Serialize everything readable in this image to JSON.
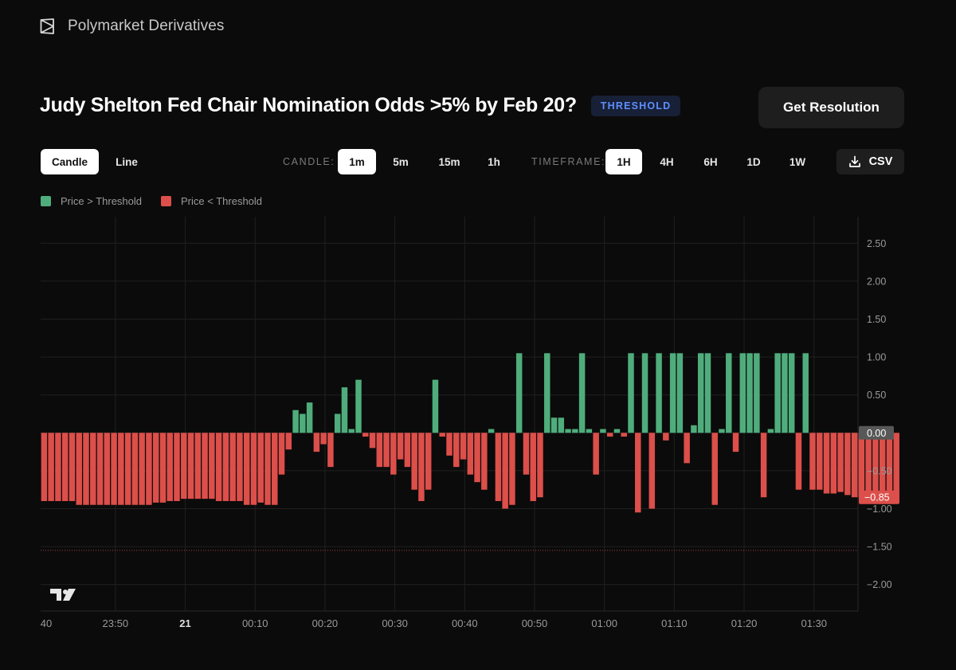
{
  "brand": {
    "name": "Polymarket Derivatives"
  },
  "page": {
    "title": "Judy Shelton Fed Chair Nomination Odds >5% by Feb 20?",
    "badge": "THRESHOLD",
    "resolution_button": "Get Resolution"
  },
  "controls": {
    "chart_types": [
      "Candle",
      "Line"
    ],
    "active_chart_type": "Candle",
    "candle_label": "CANDLE:",
    "candle_options": [
      "1m",
      "5m",
      "15m",
      "1h"
    ],
    "active_candle": "1m",
    "timeframe_label": "TIMEFRAME:",
    "timeframe_options": [
      "1H",
      "4H",
      "6H",
      "1D",
      "1W"
    ],
    "active_timeframe": "1H",
    "csv_label": "CSV"
  },
  "colors": {
    "above": "#4fad7c",
    "below": "#dc4f4a",
    "grid": "#202020",
    "zero_tag_bg": "#585858",
    "last_tag_bg": "#dc4f4a"
  },
  "chart_data": {
    "type": "bar",
    "title": "",
    "legend": [
      "Price > Threshold",
      "Price < Threshold"
    ],
    "legend_position": "top-left",
    "y_axis": {
      "min": -2.35,
      "max": 2.85,
      "ticks": [
        2.5,
        2.0,
        1.5,
        1.0,
        0.5,
        0.0,
        -0.5,
        -1.0,
        -1.5,
        -2.0
      ],
      "tick_labels": [
        "2.50",
        "2.00",
        "1.50",
        "1.00",
        "0.50",
        "0.00",
        "−0.50",
        "−1.00",
        "−1.50",
        "−2.00"
      ],
      "position": "right"
    },
    "x_axis": {
      "start_minute": -20.7,
      "end_minute": 96.3,
      "tick_minutes": [
        -20,
        -10,
        0,
        10,
        20,
        30,
        40,
        50,
        60,
        70,
        80,
        90
      ],
      "tick_labels": [
        "40",
        "23:50",
        "21",
        "00:10",
        "00:20",
        "00:30",
        "00:40",
        "00:50",
        "01:00",
        "01:10",
        "01:20",
        "01:30"
      ],
      "bold_ticks": [
        "21"
      ],
      "gridline_minutes": [
        -10,
        0,
        10,
        20,
        30,
        40,
        50,
        60,
        70,
        80,
        90
      ]
    },
    "bar_interval_minutes": 1,
    "first_bar_minute": -20.2,
    "values": [
      -0.9,
      -0.9,
      -0.9,
      -0.9,
      -0.9,
      -0.95,
      -0.95,
      -0.95,
      -0.95,
      -0.95,
      -0.95,
      -0.95,
      -0.95,
      -0.95,
      -0.95,
      -0.95,
      -0.92,
      -0.92,
      -0.9,
      -0.9,
      -0.87,
      -0.87,
      -0.87,
      -0.87,
      -0.87,
      -0.9,
      -0.9,
      -0.9,
      -0.9,
      -0.95,
      -0.95,
      -0.92,
      -0.95,
      -0.95,
      -0.55,
      -0.22,
      0.3,
      0.25,
      0.4,
      -0.25,
      -0.15,
      -0.45,
      0.25,
      0.6,
      0.05,
      0.7,
      -0.05,
      -0.2,
      -0.45,
      -0.45,
      -0.55,
      -0.35,
      -0.45,
      -0.75,
      -0.9,
      -0.75,
      0.7,
      -0.05,
      -0.3,
      -0.45,
      -0.35,
      -0.55,
      -0.65,
      -0.75,
      0.05,
      -0.9,
      -1.0,
      -0.95,
      1.05,
      -0.55,
      -0.9,
      -0.85,
      1.05,
      0.2,
      0.2,
      0.05,
      0.05,
      1.05,
      0.05,
      -0.55,
      0.05,
      -0.05,
      0.05,
      -0.05,
      1.05,
      -1.05,
      1.05,
      -1.0,
      1.05,
      -0.1,
      1.05,
      1.05,
      -0.4,
      0.1,
      1.05,
      1.05,
      -0.95,
      0.05,
      1.05,
      -0.25,
      1.05,
      1.05,
      1.05,
      -0.85,
      0.05,
      1.05,
      1.05,
      1.05,
      -0.75,
      1.05,
      -0.75,
      -0.75,
      -0.8,
      -0.8,
      -0.78,
      -0.82,
      -0.85,
      -0.85,
      -0.85,
      -0.9,
      -0.9,
      -0.9,
      -0.85
    ],
    "reference_line": {
      "value": -1.55,
      "style": "dotted"
    },
    "last_value_tag": {
      "value": -0.85,
      "label": "−0.85"
    },
    "zero_tag": {
      "value": 0.0,
      "label": "0.00"
    }
  }
}
